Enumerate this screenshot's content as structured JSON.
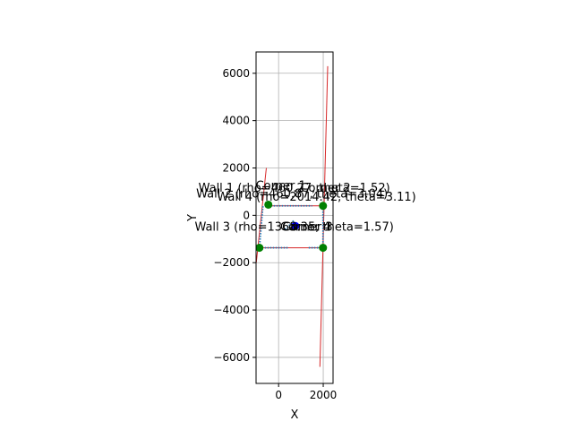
{
  "chart_data": {
    "type": "scatter",
    "xlabel": "X",
    "ylabel": "Y",
    "xlim": [
      -1010,
      2440
    ],
    "ylim": [
      -7100,
      6900
    ],
    "xticks": [
      0,
      2000
    ],
    "xtick_labels": [
      "0",
      "2000"
    ],
    "yticks": [
      -6000,
      -4000,
      -2000,
      0,
      2000,
      4000,
      6000
    ],
    "ytick_labels": [
      "−6000",
      "−4000",
      "−2000",
      "0",
      "2000",
      "4000",
      "6000"
    ],
    "grid": true,
    "colors": {
      "wall_line": "#d62728",
      "scan_points": "#1f77b4",
      "robot": "#0000ff",
      "corner": "#008000",
      "axes": "#000000",
      "grid": "#b0b0b0"
    },
    "walls": [
      {
        "label": "Wall 1 (rho=460.27, theta=1.52)",
        "rho": 460.27,
        "theta": 1.52,
        "y_from": -2000,
        "y_to": 2000,
        "label_x": 700,
        "label_y": 1000
      },
      {
        "label": "Wall 2 (rho=460.87, theta=3.04)",
        "rho": 460.87,
        "theta": 3.04,
        "y_from": -6400,
        "y_to": 6300,
        "label_x": 600,
        "label_y": 750
      },
      {
        "label": "Wall 3 (rho=1368.35, theta=1.57)",
        "rho": 1368.35,
        "theta": 1.57,
        "y_from": -1400,
        "y_to": -1300,
        "label_x": 700,
        "label_y": -650
      },
      {
        "label": "Wall 4 (rho=2014.42, theta=3.11)",
        "rho": 2014.42,
        "theta": 3.11,
        "y_from": -1400,
        "y_to": 1000,
        "label_x": 1700,
        "label_y": 620
      }
    ],
    "wall_segments": [
      {
        "x": [
          -1000,
          -550
        ],
        "y": [
          -2000,
          2000
        ]
      },
      {
        "x": [
          2200,
          1850
        ],
        "y": [
          6300,
          -6400
        ]
      },
      {
        "x": [
          -860,
          1990
        ],
        "y": [
          -1370,
          -1370
        ]
      },
      {
        "x": [
          -460,
          2000
        ],
        "y": [
          400,
          400
        ]
      }
    ],
    "scan_points": [
      {
        "x": [
          -460,
          1500
        ],
        "y": [
          400,
          400
        ]
      },
      {
        "x": [
          -860,
          -700
        ],
        "y": [
          -1370,
          400
        ]
      },
      {
        "x": [
          -860,
          450
        ],
        "y": [
          -1370,
          -1370
        ]
      },
      {
        "x": [
          1350,
          1990
        ],
        "y": [
          -1370,
          -1370
        ]
      },
      {
        "x": [
          1990,
          1990
        ],
        "y": [
          -1370,
          400
        ]
      },
      {
        "x": [
          300,
          700
        ],
        "y": [
          -600,
          -200
        ]
      }
    ],
    "robot": {
      "x": 750,
      "y": -450
    },
    "corners": [
      {
        "label": "Corner 1",
        "x": -460,
        "y": 450,
        "label_x": 100,
        "label_y": 1100
      },
      {
        "label": "Corner 2",
        "x": 1990,
        "y": 400,
        "label_x": 2100,
        "label_y": 1000
      },
      {
        "label": "Corner 3",
        "x": -860,
        "y": -1370,
        "label_x": 1300,
        "label_y": -650
      },
      {
        "label": "Corner 4",
        "x": 1990,
        "y": -1370,
        "label_x": 1200,
        "label_y": -650
      }
    ]
  }
}
